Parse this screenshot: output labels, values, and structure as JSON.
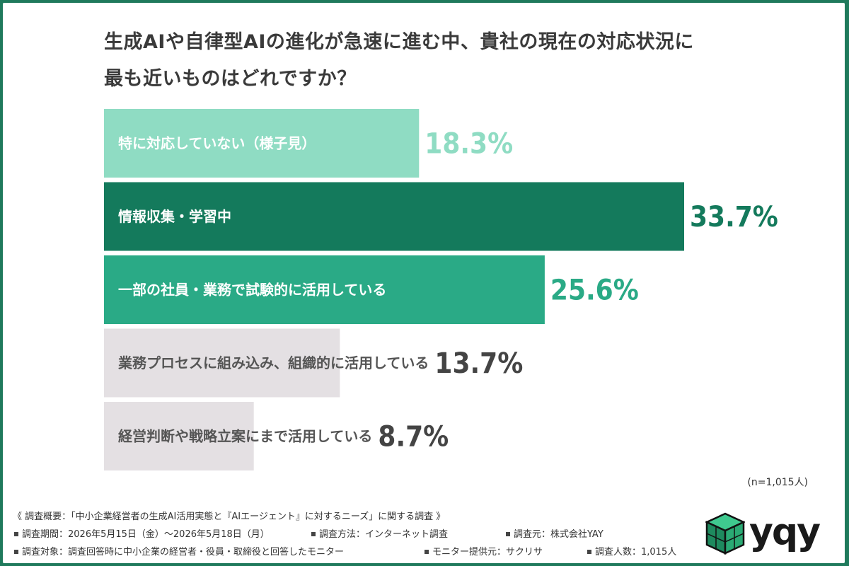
{
  "title_lines": [
    "生成AIや自律型AIの進化が急速に進む中、貴社の現在の対応状況に",
    "最も近いものはどれですか？"
  ],
  "note": "(n=1,015人)",
  "footer": {
    "summary": "《 調査概要：「中小企業経営者の生成AI活用実態と『AIエージェント』に対するニーズ」に関する調査 》",
    "period": "調査期間：2026年5月15日（金）〜2026年5月18日（月）",
    "method": "調査方法：インターネット調査",
    "source": "調査元：株式会社YAY",
    "target": "調査対象：調査回答時に中小企業の経営者・役員・取締役と回答したモニター",
    "provider": "モニター提供元：サクリサ",
    "count": "調査人数：1,015人"
  },
  "logo": {
    "text": "yqy",
    "icon": "cube-logo-icon"
  },
  "chart_data": {
    "type": "bar",
    "orientation": "horizontal",
    "categories": [
      "特に対応していない（様子見）",
      "情報収集・学習中",
      "一部の社員・業務で試験的に活用している",
      "業務プロセスに組み込み、組織的に活用している",
      "経営判断や戦略立案にまで活用している"
    ],
    "values": [
      18.3,
      33.7,
      25.6,
      13.7,
      8.7
    ],
    "value_labels": [
      "18.3%",
      "33.7%",
      "25.6%",
      "13.7%",
      "8.7%"
    ],
    "unit": "%",
    "xlim": [
      0,
      33.7
    ],
    "bar_colors": [
      "#8fdcc3",
      "#147a5c",
      "#2aaa86",
      "#e4e0e3",
      "#e4e0e3"
    ],
    "label_colors": [
      "#ffffff",
      "#ffffff",
      "#ffffff",
      "#555555",
      "#555555"
    ],
    "value_colors": [
      "#8fdcc3",
      "#147a5c",
      "#2aaa86",
      "#444444",
      "#444444"
    ],
    "grid": false,
    "legend": "none"
  }
}
